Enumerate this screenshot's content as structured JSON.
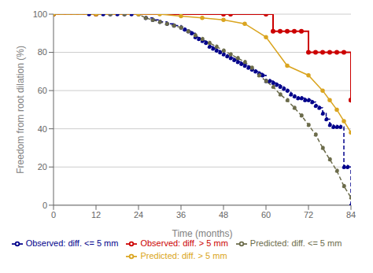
{
  "chart_data": {
    "type": "line",
    "title": "",
    "xlabel": "Time (months)",
    "ylabel": "Freedom from root dilation (%)",
    "xlim": [
      0,
      84
    ],
    "ylim": [
      0,
      100
    ],
    "xticks": [
      0,
      12,
      24,
      36,
      48,
      60,
      72,
      84
    ],
    "yticks": [
      0,
      20,
      40,
      60,
      80,
      100
    ],
    "grid": "y",
    "legend": "bottom",
    "series": [
      {
        "name": "Observed: diff. <= 5 mm",
        "type": "step",
        "color": "#00008B",
        "line_style": "dashed",
        "marker": "circle",
        "x": [
          0,
          10,
          12,
          14,
          16,
          18,
          20,
          22,
          24,
          26,
          28,
          30,
          32,
          34,
          36,
          37,
          38,
          39,
          40,
          41,
          42,
          43,
          44,
          45,
          46,
          47,
          48,
          49,
          50,
          51,
          52,
          53,
          54,
          55,
          56,
          57,
          58,
          59,
          60,
          61,
          62,
          63,
          64,
          65,
          66,
          67,
          68,
          69,
          70,
          71,
          72,
          73,
          74,
          75,
          76,
          77,
          78,
          79,
          80,
          81,
          82,
          83,
          84,
          84
        ],
        "values": [
          100,
          100,
          100,
          100,
          100,
          100,
          100,
          100,
          100,
          98,
          97,
          96,
          95,
          94,
          93,
          92,
          91,
          90,
          88,
          87,
          86,
          85,
          83,
          82,
          81,
          80,
          79,
          78,
          77,
          76,
          75,
          74,
          73,
          72,
          71,
          70,
          69,
          68,
          65,
          65,
          64,
          63,
          62,
          61,
          60,
          58,
          57,
          56,
          56,
          55,
          55,
          54,
          52,
          51,
          48,
          45,
          42,
          41,
          41,
          41,
          20,
          20,
          0,
          0
        ]
      },
      {
        "name": "Observed: diff. > 5 mm",
        "type": "step",
        "color": "#CC0000",
        "line_style": "solid",
        "marker": "circle",
        "x": [
          0,
          12,
          48,
          50,
          60,
          62,
          64,
          66,
          68,
          70,
          72,
          74,
          76,
          78,
          80,
          82,
          84,
          84
        ],
        "values": [
          100,
          100,
          100,
          100,
          100,
          91,
          91,
          91,
          91,
          91,
          80,
          80,
          80,
          80,
          80,
          80,
          55,
          55
        ]
      },
      {
        "name": "Predicted: diff. <= 5 mm",
        "type": "line",
        "color": "#6B6B4A",
        "line_style": "dashed",
        "marker": "circle",
        "x": [
          0,
          12,
          16,
          20,
          24,
          26,
          28,
          30,
          32,
          34,
          36,
          38,
          40,
          42,
          44,
          46,
          48,
          50,
          52,
          54,
          56,
          58,
          60,
          62,
          64,
          66,
          68,
          70,
          72,
          74,
          76,
          78,
          80,
          82,
          84
        ],
        "values": [
          100,
          100,
          100,
          100,
          100,
          98,
          97,
          96,
          95,
          94,
          93,
          91,
          89,
          87,
          85,
          83,
          81,
          79,
          77,
          75,
          72,
          68,
          65,
          62,
          58,
          55,
          51,
          47,
          42,
          37,
          30,
          24,
          18,
          10,
          4
        ]
      },
      {
        "name": "Predicted: diff. > 5 mm",
        "type": "line",
        "color": "#DAA520",
        "line_style": "solid",
        "marker": "circle",
        "x": [
          0,
          12,
          24,
          30,
          36,
          42,
          48,
          54,
          60,
          66,
          72,
          76,
          78,
          80,
          82,
          84
        ],
        "values": [
          100,
          100,
          100,
          100,
          99,
          98,
          97,
          95,
          88,
          73,
          68,
          60,
          55,
          50,
          44,
          38
        ]
      }
    ]
  }
}
